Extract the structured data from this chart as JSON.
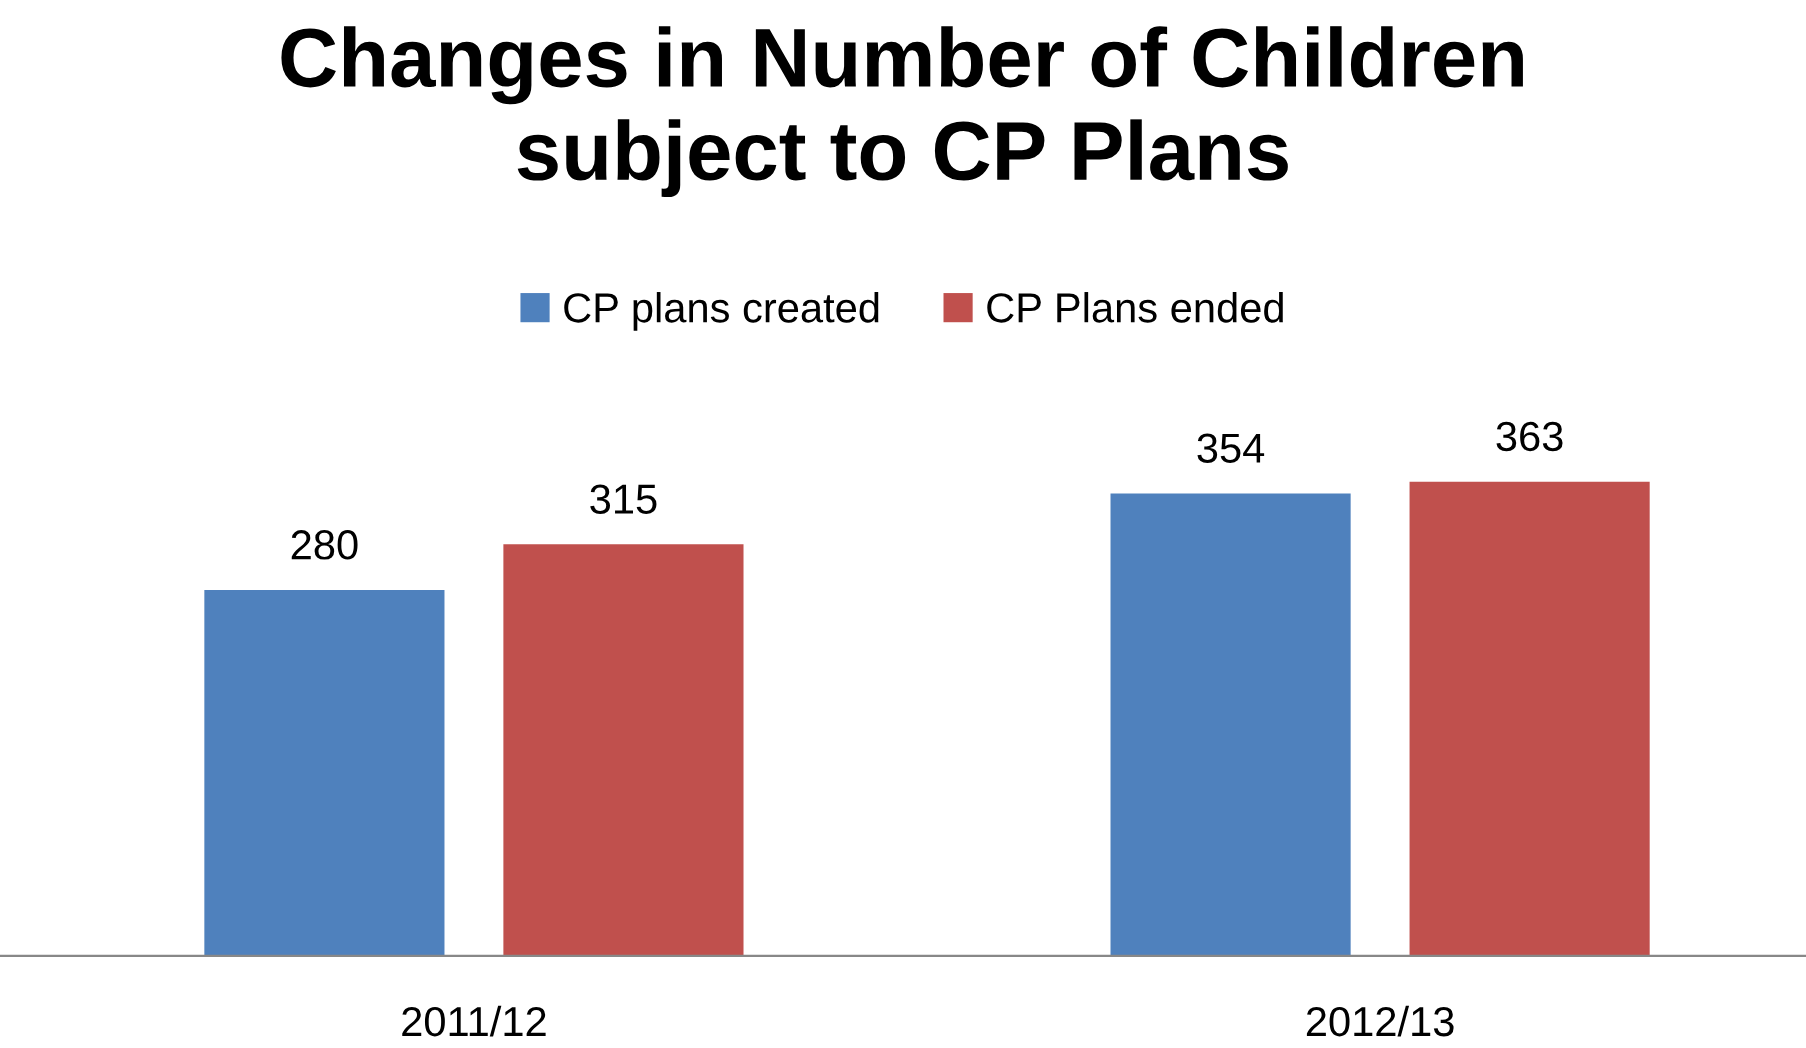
{
  "chart_data": {
    "type": "bar",
    "title": "Changes in Number of Children\nsubject to CP Plans",
    "categories": [
      "2011/12",
      "2012/13"
    ],
    "series": [
      {
        "name": "CP plans created",
        "color": "#4f81bd",
        "values": [
          280,
          354
        ]
      },
      {
        "name": "CP Plans ended",
        "color": "#c0504d",
        "values": [
          315,
          363
        ]
      }
    ],
    "data_labels": true,
    "legend": "top",
    "grid": false
  }
}
